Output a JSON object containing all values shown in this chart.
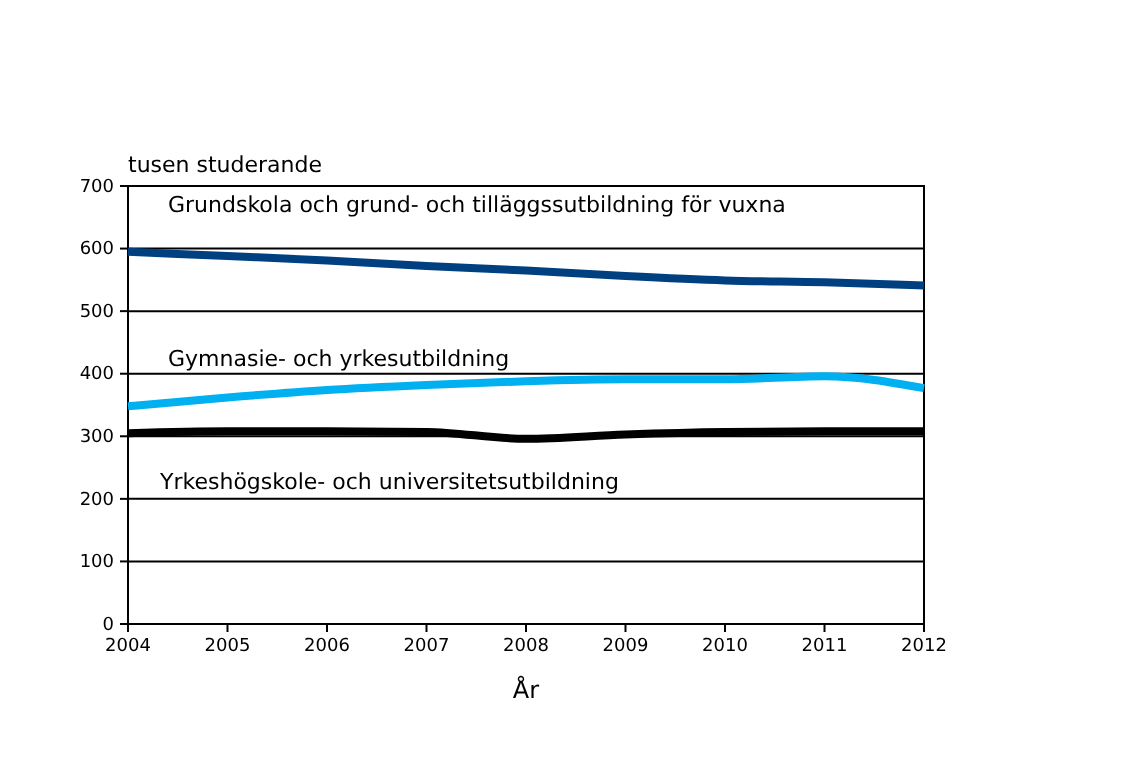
{
  "chart_data": {
    "type": "line",
    "ylabel": "tusen studerande",
    "xlabel": "År",
    "x": [
      2004,
      2005,
      2006,
      2007,
      2008,
      2009,
      2010,
      2011,
      2012
    ],
    "xlim": [
      2004,
      2012
    ],
    "xticks": [
      2004,
      2005,
      2006,
      2007,
      2008,
      2009,
      2010,
      2011,
      2012
    ],
    "ylim": [
      0,
      700
    ],
    "yticks": [
      0,
      100,
      200,
      300,
      400,
      500,
      600,
      700
    ],
    "grid": "y",
    "marker": "none",
    "line_style": "solid",
    "series": [
      {
        "name": "Grundskola och grund- och tilläggssutbildning för vuxna",
        "color": "#004080",
        "values": [
          595,
          588,
          581,
          572,
          565,
          556,
          549,
          546,
          541
        ]
      },
      {
        "name": "Gymnasie- och yrkesutbildning",
        "color": "#00b0f0",
        "values": [
          348,
          362,
          374,
          382,
          388,
          391,
          391,
          396,
          377
        ]
      },
      {
        "name": "Yrkeshögskole- och universitetsutbildning",
        "color": "#000000",
        "values": [
          305,
          308,
          308,
          307,
          296,
          303,
          307,
          308,
          308
        ]
      }
    ]
  }
}
